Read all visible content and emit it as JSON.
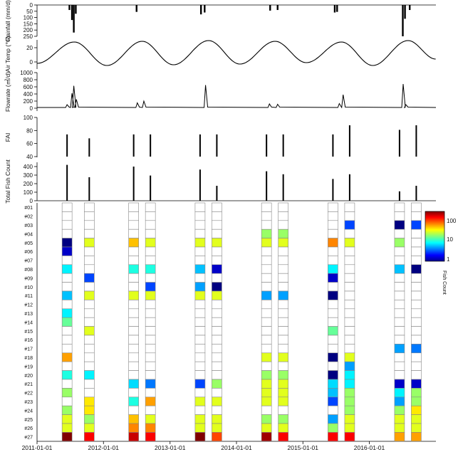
{
  "panels": {
    "rainfall": {
      "ylabel": "Rainfall (mm/d)",
      "ticks": [
        0,
        50,
        100,
        150,
        200,
        250
      ]
    },
    "airtemp": {
      "ylabel": "Air Temp (℃)",
      "ticks": [
        0,
        20
      ]
    },
    "flowrate": {
      "ylabel": "Flowrate (㎥/d)",
      "ticks": [
        0,
        200,
        400,
        600,
        800,
        1000
      ]
    },
    "fai": {
      "ylabel": "FAI",
      "ticks": [
        40,
        60,
        80,
        100
      ]
    },
    "fishcount": {
      "ylabel": "Total Fish Count",
      "ticks": [
        0,
        100,
        200,
        300,
        400
      ]
    }
  },
  "heatmap": {
    "row_labels": [
      "#01",
      "#02",
      "#03",
      "#04",
      "#05",
      "#06",
      "#07",
      "#08",
      "#09",
      "#10",
      "#11",
      "#12",
      "#13",
      "#14",
      "#15",
      "#16",
      "#17",
      "#18",
      "#19",
      "#20",
      "#21",
      "#22",
      "#23",
      "#24",
      "#25",
      "#26",
      "#27"
    ],
    "colorbar_label": "Fish Count",
    "colorbar_ticks": [
      "100",
      "10",
      "1"
    ]
  },
  "x_axis": {
    "ticks": [
      "2011-01-01",
      "2012-01-01",
      "2013-01-01",
      "2014-01-01",
      "2015-01-01",
      "2016-01-01"
    ]
  },
  "chart_data": [
    {
      "type": "bar",
      "ylabel": "Rainfall (mm/d)",
      "ylim": [
        0,
        250
      ],
      "inverted": true,
      "series": [
        {
          "x": [
            "2011-07-12",
            "2011-07-22",
            "2011-08-02",
            "2011-06-28",
            "2012-07-01",
            "2013-06-20",
            "2013-07-10",
            "2014-07-05",
            "2014-08-15",
            "2015-06-25",
            "2015-07-08",
            "2016-07-03",
            "2016-07-15",
            "2016-08-10"
          ],
          "values": [
            120,
            220,
            70,
            40,
            55,
            75,
            60,
            45,
            40,
            60,
            55,
            250,
            110,
            40
          ]
        }
      ]
    },
    {
      "type": "line",
      "ylabel": "Air Temp (℃)",
      "ylim": [
        -8,
        30
      ],
      "series": [
        {
          "x": [
            "2011-01-01",
            "2011-07-25",
            "2012-01-20",
            "2012-08-01",
            "2013-01-20",
            "2013-08-01",
            "2014-01-20",
            "2014-08-01",
            "2015-01-20",
            "2015-08-01",
            "2016-01-20",
            "2016-08-01",
            "2016-12-31"
          ],
          "values": [
            -2,
            28,
            -5,
            29,
            -4,
            30,
            -3,
            29,
            -1,
            28,
            -5,
            30,
            4
          ]
        }
      ]
    },
    {
      "type": "line",
      "ylabel": "Flowrate (㎥/d)",
      "ylim": [
        0,
        1000
      ],
      "series": [
        {
          "x": [
            "2011-06-15",
            "2011-07-12",
            "2011-07-22",
            "2011-08-05",
            "2012-07-05",
            "2012-08-10",
            "2013-07-15",
            "2014-07-01",
            "2014-08-15",
            "2015-07-20",
            "2015-08-10",
            "2016-07-05",
            "2016-07-20"
          ],
          "values": [
            100,
            420,
            630,
            250,
            150,
            200,
            650,
            120,
            110,
            130,
            380,
            680,
            100
          ]
        }
      ]
    },
    {
      "type": "bar",
      "ylabel": "FAI",
      "ylim": [
        40,
        100
      ],
      "series": [
        {
          "x": [
            "2011-06",
            "2011-10",
            "2012-06",
            "2012-09",
            "2013-06",
            "2013-09",
            "2014-06",
            "2014-09",
            "2015-06",
            "2015-09",
            "2016-06",
            "2016-09"
          ],
          "values": [
            74,
            68,
            74,
            74,
            74,
            74,
            74,
            74,
            74,
            88,
            81,
            88
          ]
        }
      ]
    },
    {
      "type": "bar",
      "ylabel": "Total Fish Count",
      "ylim": [
        0,
        450
      ],
      "series": [
        {
          "x": [
            "2011-06",
            "2011-10",
            "2012-06",
            "2012-09",
            "2013-06",
            "2013-09",
            "2014-06",
            "2014-09",
            "2015-06",
            "2015-09",
            "2016-06",
            "2016-09"
          ],
          "values": [
            420,
            275,
            400,
            295,
            365,
            175,
            345,
            310,
            255,
            310,
            110,
            175
          ]
        }
      ]
    },
    {
      "type": "heatmap",
      "rows": [
        "#01",
        "#02",
        "#03",
        "#04",
        "#05",
        "#06",
        "#07",
        "#08",
        "#09",
        "#10",
        "#11",
        "#12",
        "#13",
        "#14",
        "#15",
        "#16",
        "#17",
        "#18",
        "#19",
        "#20",
        "#21",
        "#22",
        "#23",
        "#24",
        "#25",
        "#26",
        "#27"
      ],
      "columns": [
        "2011-06",
        "2011-10",
        "2012-06",
        "2012-09",
        "2013-06",
        "2013-09",
        "2014-06",
        "2014-09",
        "2015-06",
        "2015-09",
        "2016-06",
        "2016-09"
      ],
      "colorbar": {
        "label": "Fish Count",
        "scale": "log",
        "range": [
          1,
          300
        ]
      },
      "values": [
        [
          0,
          0,
          0,
          0,
          0,
          0,
          0,
          0,
          0,
          0,
          0,
          0
        ],
        [
          0,
          0,
          0,
          0,
          0,
          0,
          0,
          0,
          0,
          0,
          0,
          0
        ],
        [
          0,
          0,
          0,
          0,
          0,
          0,
          0,
          0,
          0,
          3,
          1,
          3
        ],
        [
          0,
          0,
          0,
          0,
          0,
          0,
          20,
          20,
          0,
          0,
          0,
          0
        ],
        [
          1,
          30,
          50,
          30,
          30,
          30,
          30,
          30,
          70,
          30,
          20,
          0
        ],
        [
          1.5,
          0,
          0,
          0,
          0,
          0,
          0,
          0,
          0,
          0,
          0,
          0
        ],
        [
          0,
          0,
          0,
          0,
          0,
          0,
          0,
          0,
          0,
          0,
          0,
          0
        ],
        [
          8,
          0,
          10,
          10,
          6,
          1.5,
          0,
          0,
          8,
          0,
          6,
          1
        ],
        [
          0,
          3,
          0,
          0,
          0,
          0,
          0,
          0,
          1.5,
          0,
          0,
          0
        ],
        [
          0,
          0,
          0,
          3,
          5,
          1,
          0,
          0,
          0,
          0,
          0,
          0
        ],
        [
          6,
          30,
          30,
          30,
          30,
          30,
          5,
          5,
          1,
          0,
          0,
          0
        ],
        [
          0,
          0,
          0,
          0,
          0,
          0,
          0,
          0,
          0,
          0,
          0,
          0
        ],
        [
          8,
          0,
          0,
          0,
          0,
          0,
          0,
          0,
          0,
          0,
          0,
          0
        ],
        [
          15,
          0,
          0,
          0,
          0,
          0,
          0,
          0,
          0,
          0,
          0,
          0
        ],
        [
          0,
          30,
          0,
          0,
          0,
          0,
          0,
          0,
          15,
          0,
          0,
          0
        ],
        [
          0,
          0,
          0,
          0,
          0,
          0,
          0,
          0,
          0,
          0,
          0,
          0
        ],
        [
          0,
          0,
          0,
          0,
          0,
          0,
          0,
          0,
          0,
          0,
          5,
          4
        ],
        [
          60,
          0,
          0,
          0,
          0,
          0,
          30,
          30,
          1,
          30,
          0,
          0
        ],
        [
          0,
          0,
          0,
          0,
          0,
          0,
          0,
          0,
          0,
          5,
          0,
          0
        ],
        [
          10,
          8,
          0,
          0,
          0,
          0,
          20,
          20,
          1,
          8,
          0,
          0
        ],
        [
          0,
          0,
          7,
          4,
          3,
          20,
          30,
          30,
          7,
          8,
          1.5,
          1.5
        ],
        [
          20,
          0,
          0,
          0,
          0,
          0,
          30,
          30,
          6,
          20,
          8,
          20
        ],
        [
          0,
          40,
          10,
          60,
          30,
          30,
          30,
          30,
          3,
          20,
          5,
          20
        ],
        [
          20,
          40,
          0,
          0,
          0,
          0,
          0,
          0,
          0,
          20,
          20,
          40
        ],
        [
          30,
          20,
          50,
          30,
          30,
          30,
          20,
          20,
          5,
          30,
          30,
          30
        ],
        [
          30,
          30,
          70,
          70,
          30,
          30,
          30,
          30,
          20,
          30,
          30,
          30
        ],
        [
          300,
          150,
          200,
          150,
          300,
          100,
          250,
          150,
          150,
          150,
          60,
          60
        ]
      ]
    }
  ]
}
